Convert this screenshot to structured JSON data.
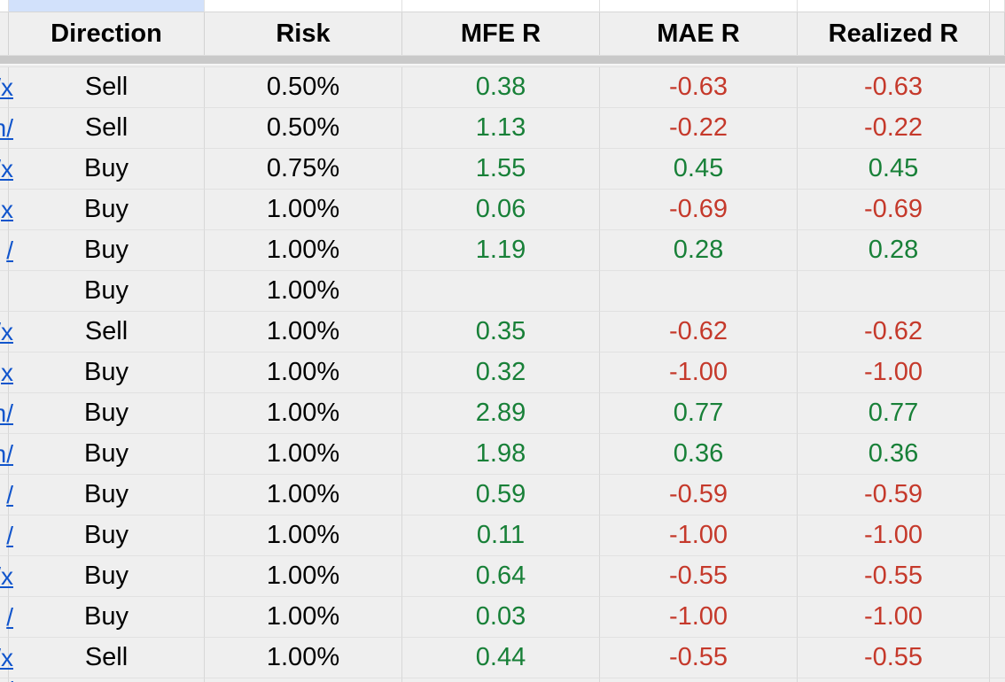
{
  "colors": {
    "cell_bg": "#efefef",
    "top_row_bg": "#ffffff",
    "selection_fill": "#d2e1fb",
    "gridline_v": "#d7d7d7",
    "gridline_h": "#e1e1e1",
    "divider_band": "#c9c9c9",
    "text": "#000000",
    "positive": "#188038",
    "negative": "#c5392b",
    "link": "#1155cc"
  },
  "header": {
    "columns": [
      "Direction",
      "Risk",
      "MFE R",
      "MAE R",
      "Realized R"
    ]
  },
  "rows": [
    {
      "link_fragment": "/x",
      "direction": "Sell",
      "risk": "0.50%",
      "mfe_r": "0.38",
      "mae_r": "-0.63",
      "realized_r": "-0.63"
    },
    {
      "link_fragment": "n/",
      "direction": "Sell",
      "risk": "0.50%",
      "mfe_r": "1.13",
      "mae_r": "-0.22",
      "realized_r": "-0.22"
    },
    {
      "link_fragment": "/x",
      "direction": "Buy",
      "risk": "0.75%",
      "mfe_r": "1.55",
      "mae_r": "0.45",
      "realized_r": "0.45"
    },
    {
      "link_fragment": "x",
      "direction": "Buy",
      "risk": "1.00%",
      "mfe_r": "0.06",
      "mae_r": "-0.69",
      "realized_r": "-0.69"
    },
    {
      "link_fragment": "/",
      "direction": "Buy",
      "risk": "1.00%",
      "mfe_r": "1.19",
      "mae_r": "0.28",
      "realized_r": "0.28"
    },
    {
      "link_fragment": "",
      "direction": "Buy",
      "risk": "1.00%",
      "mfe_r": "",
      "mae_r": "",
      "realized_r": ""
    },
    {
      "link_fragment": "/x",
      "direction": "Sell",
      "risk": "1.00%",
      "mfe_r": "0.35",
      "mae_r": "-0.62",
      "realized_r": "-0.62"
    },
    {
      "link_fragment": "x",
      "direction": "Buy",
      "risk": "1.00%",
      "mfe_r": "0.32",
      "mae_r": "-1.00",
      "realized_r": "-1.00"
    },
    {
      "link_fragment": "n/",
      "direction": "Buy",
      "risk": "1.00%",
      "mfe_r": "2.89",
      "mae_r": "0.77",
      "realized_r": "0.77"
    },
    {
      "link_fragment": "n/",
      "direction": "Buy",
      "risk": "1.00%",
      "mfe_r": "1.98",
      "mae_r": "0.36",
      "realized_r": "0.36"
    },
    {
      "link_fragment": "/",
      "direction": "Buy",
      "risk": "1.00%",
      "mfe_r": "0.59",
      "mae_r": "-0.59",
      "realized_r": "-0.59"
    },
    {
      "link_fragment": "/",
      "direction": "Buy",
      "risk": "1.00%",
      "mfe_r": "0.11",
      "mae_r": "-1.00",
      "realized_r": "-1.00"
    },
    {
      "link_fragment": "/x",
      "direction": "Buy",
      "risk": "1.00%",
      "mfe_r": "0.64",
      "mae_r": "-0.55",
      "realized_r": "-0.55"
    },
    {
      "link_fragment": "/",
      "direction": "Buy",
      "risk": "1.00%",
      "mfe_r": "0.03",
      "mae_r": "-1.00",
      "realized_r": "-1.00"
    },
    {
      "link_fragment": "/x",
      "direction": "Sell",
      "risk": "1.00%",
      "mfe_r": "0.44",
      "mae_r": "-0.55",
      "realized_r": "-0.55"
    }
  ],
  "partial_row": {
    "link_fragment": "/"
  }
}
